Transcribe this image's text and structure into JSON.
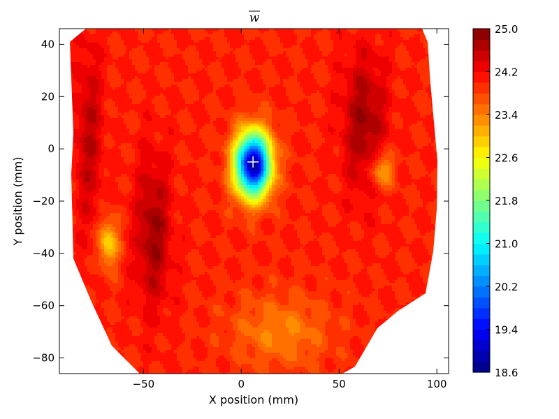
{
  "chart_data": {
    "type": "heatmap",
    "subtype": "filled-contour",
    "title": "w",
    "title_overline": true,
    "xlabel": "X position (mm)",
    "ylabel": "Y position (mm)",
    "xlim": [
      -93,
      106
    ],
    "ylim": [
      -86,
      46
    ],
    "x_ticks": [
      -50,
      0,
      50,
      100
    ],
    "x_tick_labels": [
      "−50",
      "0",
      "50",
      "100"
    ],
    "y_ticks": [
      40,
      20,
      0,
      -20,
      -40,
      -60,
      -80
    ],
    "y_tick_labels": [
      "40",
      "20",
      "0",
      "−20",
      "−40",
      "−60",
      "−80"
    ],
    "grid": false,
    "colormap": "jet",
    "colorbar": {
      "min": 18.6,
      "max": 25.0,
      "ticks": [
        25.0,
        24.2,
        23.4,
        22.6,
        21.8,
        21.0,
        20.2,
        19.4,
        18.6
      ],
      "tick_labels": [
        "25.0",
        "24.2",
        "23.4",
        "22.6",
        "21.8",
        "21.0",
        "20.2",
        "19.4",
        "18.6"
      ],
      "levels": 32
    },
    "center_marker": {
      "x": 6,
      "y": -5,
      "symbol": "+",
      "color": "#ffffff"
    },
    "regions": [
      {
        "kind": "min",
        "x": 6,
        "y": -6,
        "value": 18.8,
        "sx": 9,
        "sy": 12
      },
      {
        "kind": "high",
        "x": 63,
        "y": 10,
        "value": 24.8,
        "sx": 11,
        "sy": 26
      },
      {
        "kind": "high",
        "x": -45,
        "y": -32,
        "value": 24.8,
        "sx": 9,
        "sy": 28
      },
      {
        "kind": "high",
        "x": -78,
        "y": 5,
        "value": 24.6,
        "sx": 7,
        "sy": 35
      },
      {
        "kind": "low",
        "x": -68,
        "y": -36,
        "value": 22.8,
        "sx": 5,
        "sy": 9
      },
      {
        "kind": "low",
        "x": 72,
        "y": -8,
        "value": 23.0,
        "sx": 6,
        "sy": 7
      },
      {
        "kind": "low",
        "x": 20,
        "y": -70,
        "value": 23.4,
        "sx": 25,
        "sy": 14
      }
    ]
  }
}
